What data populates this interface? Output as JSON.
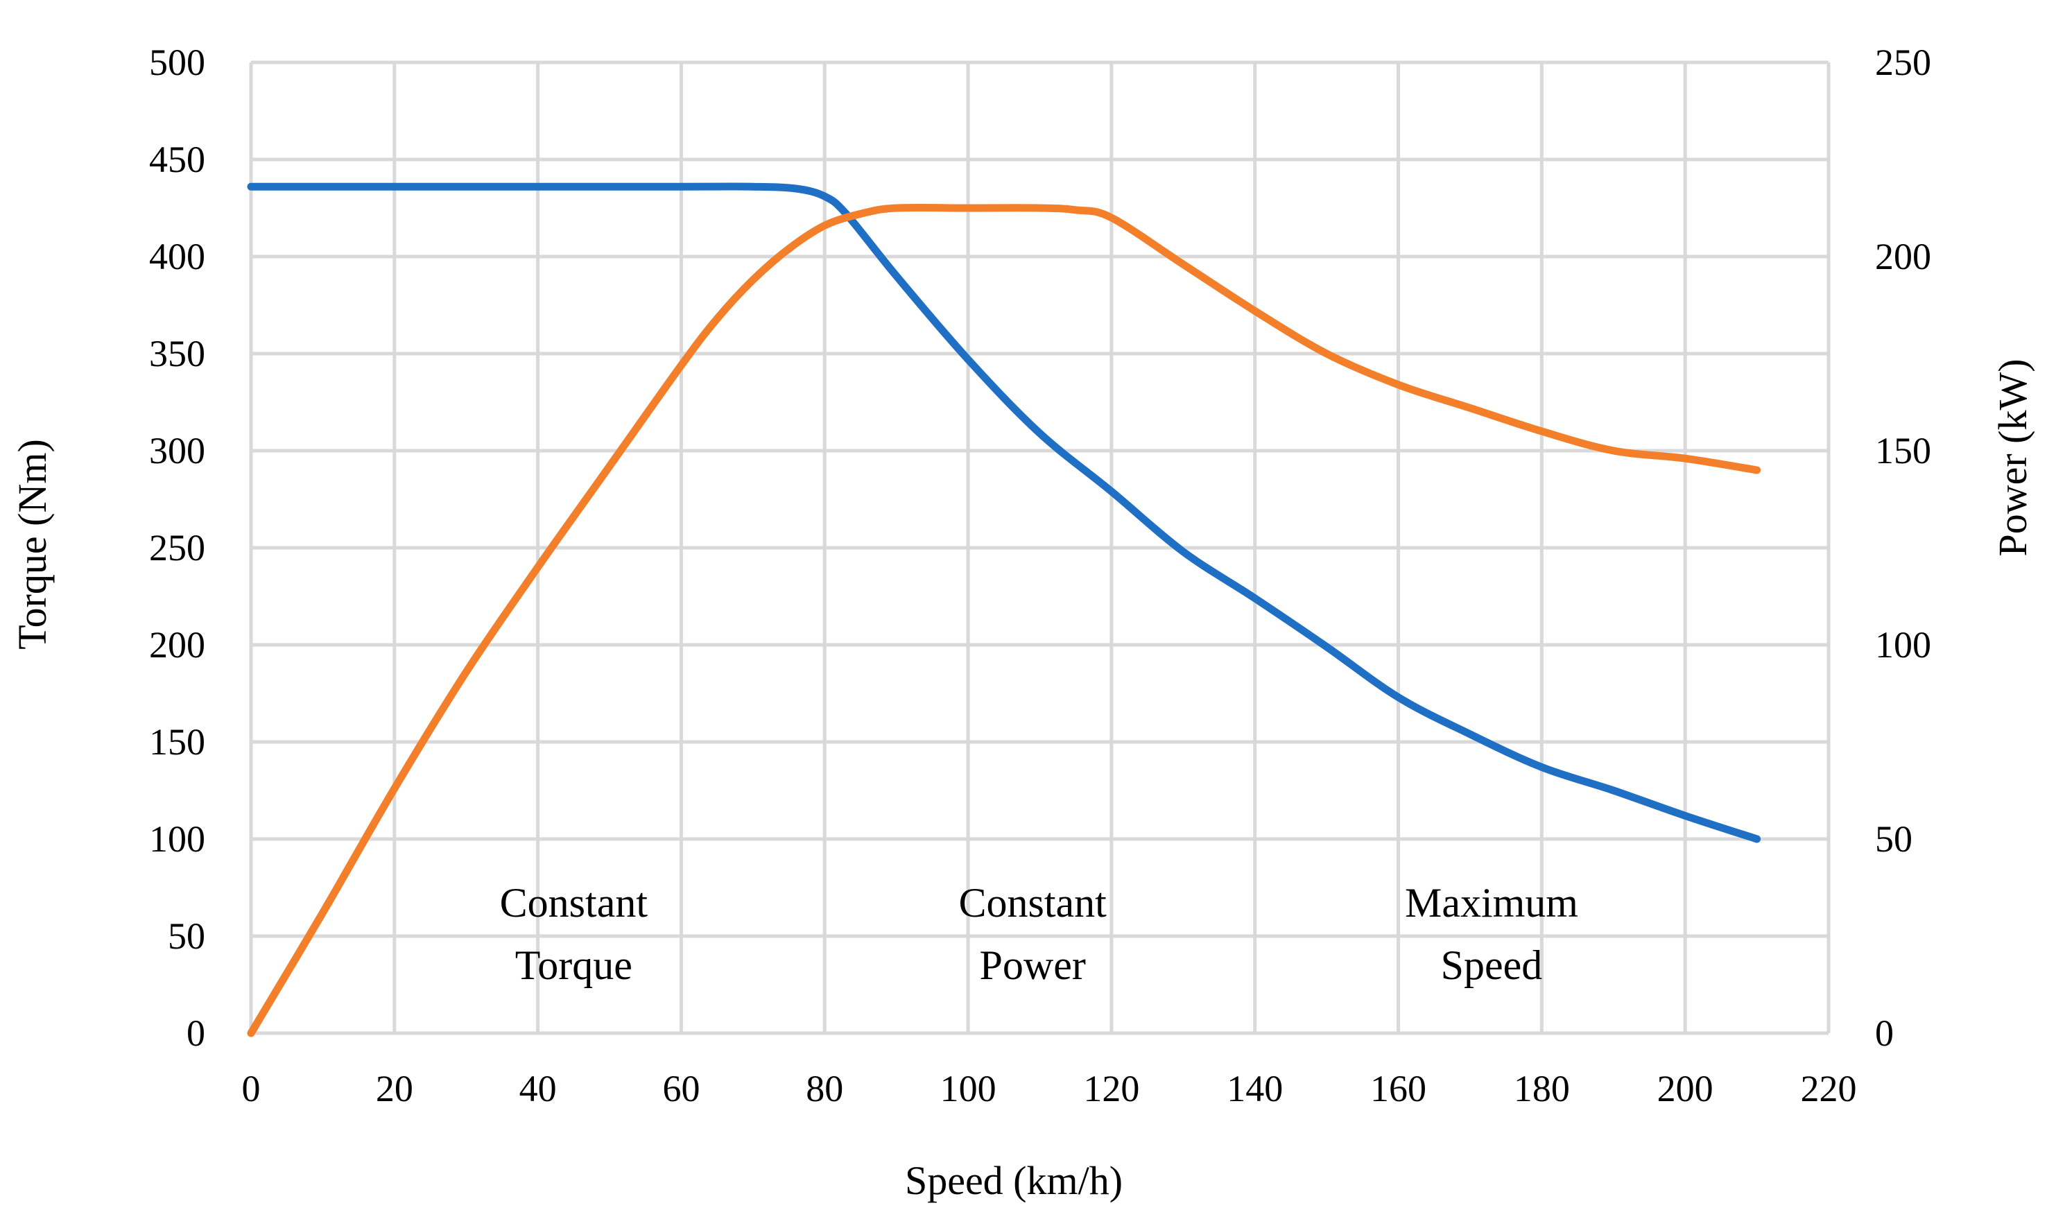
{
  "chart_data": {
    "type": "line",
    "title": "",
    "xlabel": "Speed (km/h)",
    "ylabel": "Torque (Nm)",
    "y2label": "Power (kW)",
    "xlim": [
      0,
      220
    ],
    "ylim": [
      0,
      500
    ],
    "y2lim": [
      0,
      250
    ],
    "xticks": [
      0,
      20,
      40,
      60,
      80,
      100,
      120,
      140,
      160,
      180,
      200,
      220
    ],
    "yticks": [
      0,
      50,
      100,
      150,
      200,
      250,
      300,
      350,
      400,
      450,
      500
    ],
    "y2ticks": [
      0,
      50,
      100,
      150,
      200,
      250
    ],
    "grid": true,
    "series": [
      {
        "name": "Torque",
        "axis": "left",
        "color": "#1f6fc5",
        "x": [
          0,
          20,
          40,
          60,
          70,
          76,
          80,
          83,
          90,
          100,
          110,
          120,
          130,
          140,
          150,
          160,
          170,
          180,
          190,
          200,
          210
        ],
        "values": [
          436,
          436,
          436,
          436,
          436,
          435,
          431,
          422,
          390,
          347,
          309,
          279,
          248,
          224,
          199,
          173,
          154,
          137,
          125,
          112,
          100
        ]
      },
      {
        "name": "Power",
        "axis": "right",
        "color": "#f47f2a",
        "x": [
          0,
          10,
          20,
          30,
          40,
          50,
          60,
          65,
          70,
          75,
          80,
          85,
          90,
          100,
          110,
          115,
          120,
          130,
          140,
          150,
          160,
          170,
          180,
          190,
          200,
          210
        ],
        "values": [
          0,
          31,
          63,
          93,
          120,
          146,
          172,
          184,
          194,
          202,
          208,
          211,
          212.5,
          212.5,
          212.5,
          212,
          210,
          198,
          186,
          175,
          167,
          161,
          155,
          150,
          148,
          145
        ]
      }
    ],
    "annotations": [
      {
        "lines": [
          "Constant",
          "Torque"
        ],
        "x": 45
      },
      {
        "lines": [
          "Constant",
          "Power"
        ],
        "x": 109
      },
      {
        "lines": [
          "Maximum",
          "Speed"
        ],
        "x": 173
      }
    ]
  }
}
